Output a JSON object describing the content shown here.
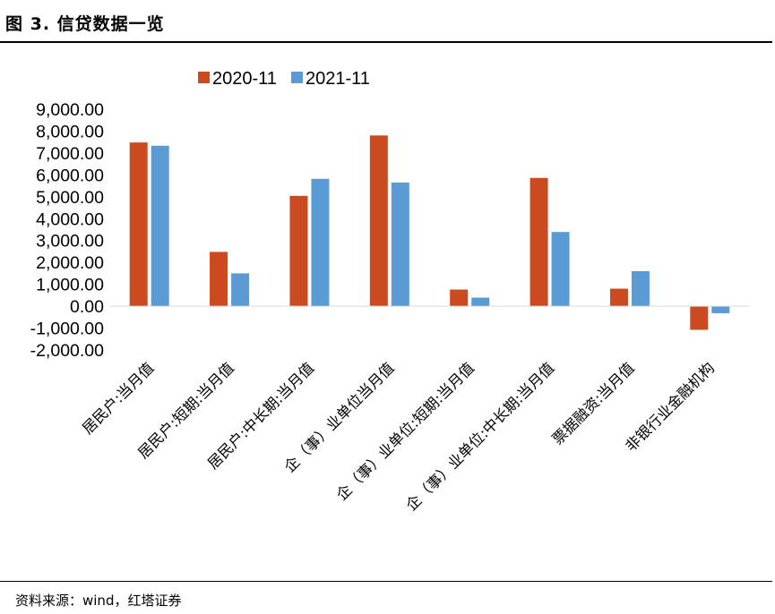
{
  "figure": {
    "title": "图 3. 信贷数据一览",
    "source": "资料来源：wind，红塔证券"
  },
  "colors": {
    "series_2020": "#CC4A1F",
    "series_2021": "#5B9BD5"
  },
  "chart_data": {
    "type": "bar",
    "title": "",
    "xlabel": "",
    "ylabel": "",
    "ylim": [
      -2000,
      9000
    ],
    "yticks": [
      9000,
      8000,
      7000,
      6000,
      5000,
      4000,
      3000,
      2000,
      1000,
      0,
      -1000,
      -2000
    ],
    "ytick_labels": [
      "9,000.00",
      "8,000.00",
      "7,000.00",
      "6,000.00",
      "5,000.00",
      "4,000.00",
      "3,000.00",
      "2,000.00",
      "1,000.00",
      "0.00",
      "-1,000.00",
      "-2,000.00"
    ],
    "grid": false,
    "legend_position": "top",
    "categories": [
      "居民户:当月值",
      "居民户:短期:当月值",
      "居民户:中长期:当月值",
      "企（事）业单位当月值",
      "企（事）业单位:短期:当月值",
      "企（事）业单位:中长期:当月值",
      "票据融资:当月值",
      "非银行业金融机构"
    ],
    "series": [
      {
        "name": "2020-11",
        "values": [
          7480,
          2480,
          5040,
          7800,
          760,
          5860,
          800,
          -1080
        ]
      },
      {
        "name": "2021-11",
        "values": [
          7330,
          1500,
          5820,
          5650,
          390,
          3390,
          1600,
          -320
        ]
      }
    ]
  }
}
